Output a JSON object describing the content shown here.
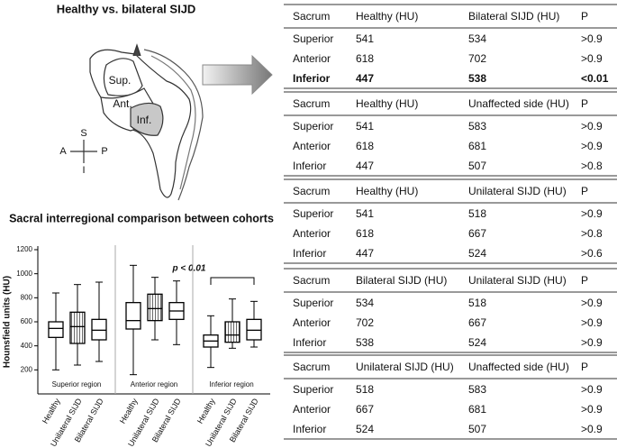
{
  "title": "Healthy vs. bilateral SIJD",
  "diagram": {
    "regions": [
      "Sup.",
      "Ant.",
      "Inf."
    ],
    "directions": [
      "S",
      "A",
      "P",
      "I"
    ]
  },
  "chart_data": {
    "type": "box",
    "title": "Sacral interregional comparison between cohorts",
    "y_label": "Hounsfield units (HU)",
    "ylim": [
      0,
      1200
    ],
    "yticks": [
      200,
      400,
      600,
      800,
      1000,
      1200
    ],
    "panels": [
      {
        "label": "Superior region",
        "categories": [
          "Healthy",
          "Unilateral SIJD",
          "Bilateral SIJD"
        ],
        "boxes": [
          {
            "min": 200,
            "q1": 470,
            "median": 545,
            "q3": 600,
            "max": 840
          },
          {
            "min": 240,
            "q1": 420,
            "median": 560,
            "q3": 680,
            "max": 910
          },
          {
            "min": 270,
            "q1": 450,
            "median": 530,
            "q3": 620,
            "max": 930
          }
        ]
      },
      {
        "label": "Anterior region",
        "categories": [
          "Healthy",
          "Unilateral SIJD",
          "Bilateral SIJD"
        ],
        "boxes": [
          {
            "min": 160,
            "q1": 540,
            "median": 610,
            "q3": 760,
            "max": 1070
          },
          {
            "min": 450,
            "q1": 610,
            "median": 710,
            "q3": 830,
            "max": 970
          },
          {
            "min": 410,
            "q1": 620,
            "median": 690,
            "q3": 760,
            "max": 940
          }
        ]
      },
      {
        "label": "Inferior region",
        "categories": [
          "Healthy",
          "Unilateral SIJD",
          "Bilateral SIJD"
        ],
        "boxes": [
          {
            "min": 220,
            "q1": 390,
            "median": 440,
            "q3": 490,
            "max": 650
          },
          {
            "min": 380,
            "q1": 430,
            "median": 490,
            "q3": 600,
            "max": 790
          },
          {
            "min": 390,
            "q1": 450,
            "median": 530,
            "q3": 620,
            "max": 770
          }
        ]
      }
    ],
    "hatched_category": 1,
    "annotation": "p < 0.01"
  },
  "tables": [
    {
      "header": [
        "Sacrum",
        "Healthy (HU)",
        "Bilateral SIJD (HU)",
        "P"
      ],
      "rows": [
        [
          "Superior",
          "541",
          "534",
          ">0.9"
        ],
        [
          "Anterior",
          "618",
          "702",
          ">0.9"
        ],
        [
          "Inferior",
          "447",
          "538",
          "<0.01"
        ]
      ],
      "bold_rows": [
        2
      ]
    },
    {
      "header": [
        "Sacrum",
        "Healthy (HU)",
        "Unaffected side (HU)",
        "P"
      ],
      "rows": [
        [
          "Superior",
          "541",
          "583",
          ">0.9"
        ],
        [
          "Anterior",
          "618",
          "681",
          ">0.9"
        ],
        [
          "Inferior",
          "447",
          "507",
          ">0.8"
        ]
      ]
    },
    {
      "header": [
        "Sacrum",
        "Healthy (HU)",
        "Unilateral SIJD (HU)",
        "P"
      ],
      "rows": [
        [
          "Superior",
          "541",
          "518",
          ">0.9"
        ],
        [
          "Anterior",
          "618",
          "667",
          ">0.8"
        ],
        [
          "Inferior",
          "447",
          "524",
          ">0.6"
        ]
      ]
    },
    {
      "header": [
        "Sacrum",
        "Bilateral SIJD (HU)",
        "Unilateral SIJD (HU)",
        "P"
      ],
      "rows": [
        [
          "Superior",
          "534",
          "518",
          ">0.9"
        ],
        [
          "Anterior",
          "702",
          "667",
          ">0.9"
        ],
        [
          "Inferior",
          "538",
          "524",
          ">0.9"
        ]
      ]
    },
    {
      "header": [
        "Sacrum",
        "Unilateral SIJD (HU)",
        "Unaffected side (HU)",
        "P"
      ],
      "rows": [
        [
          "Superior",
          "518",
          "583",
          ">0.9"
        ],
        [
          "Anterior",
          "667",
          "681",
          ">0.9"
        ],
        [
          "Inferior",
          "524",
          "507",
          ">0.9"
        ]
      ]
    }
  ]
}
